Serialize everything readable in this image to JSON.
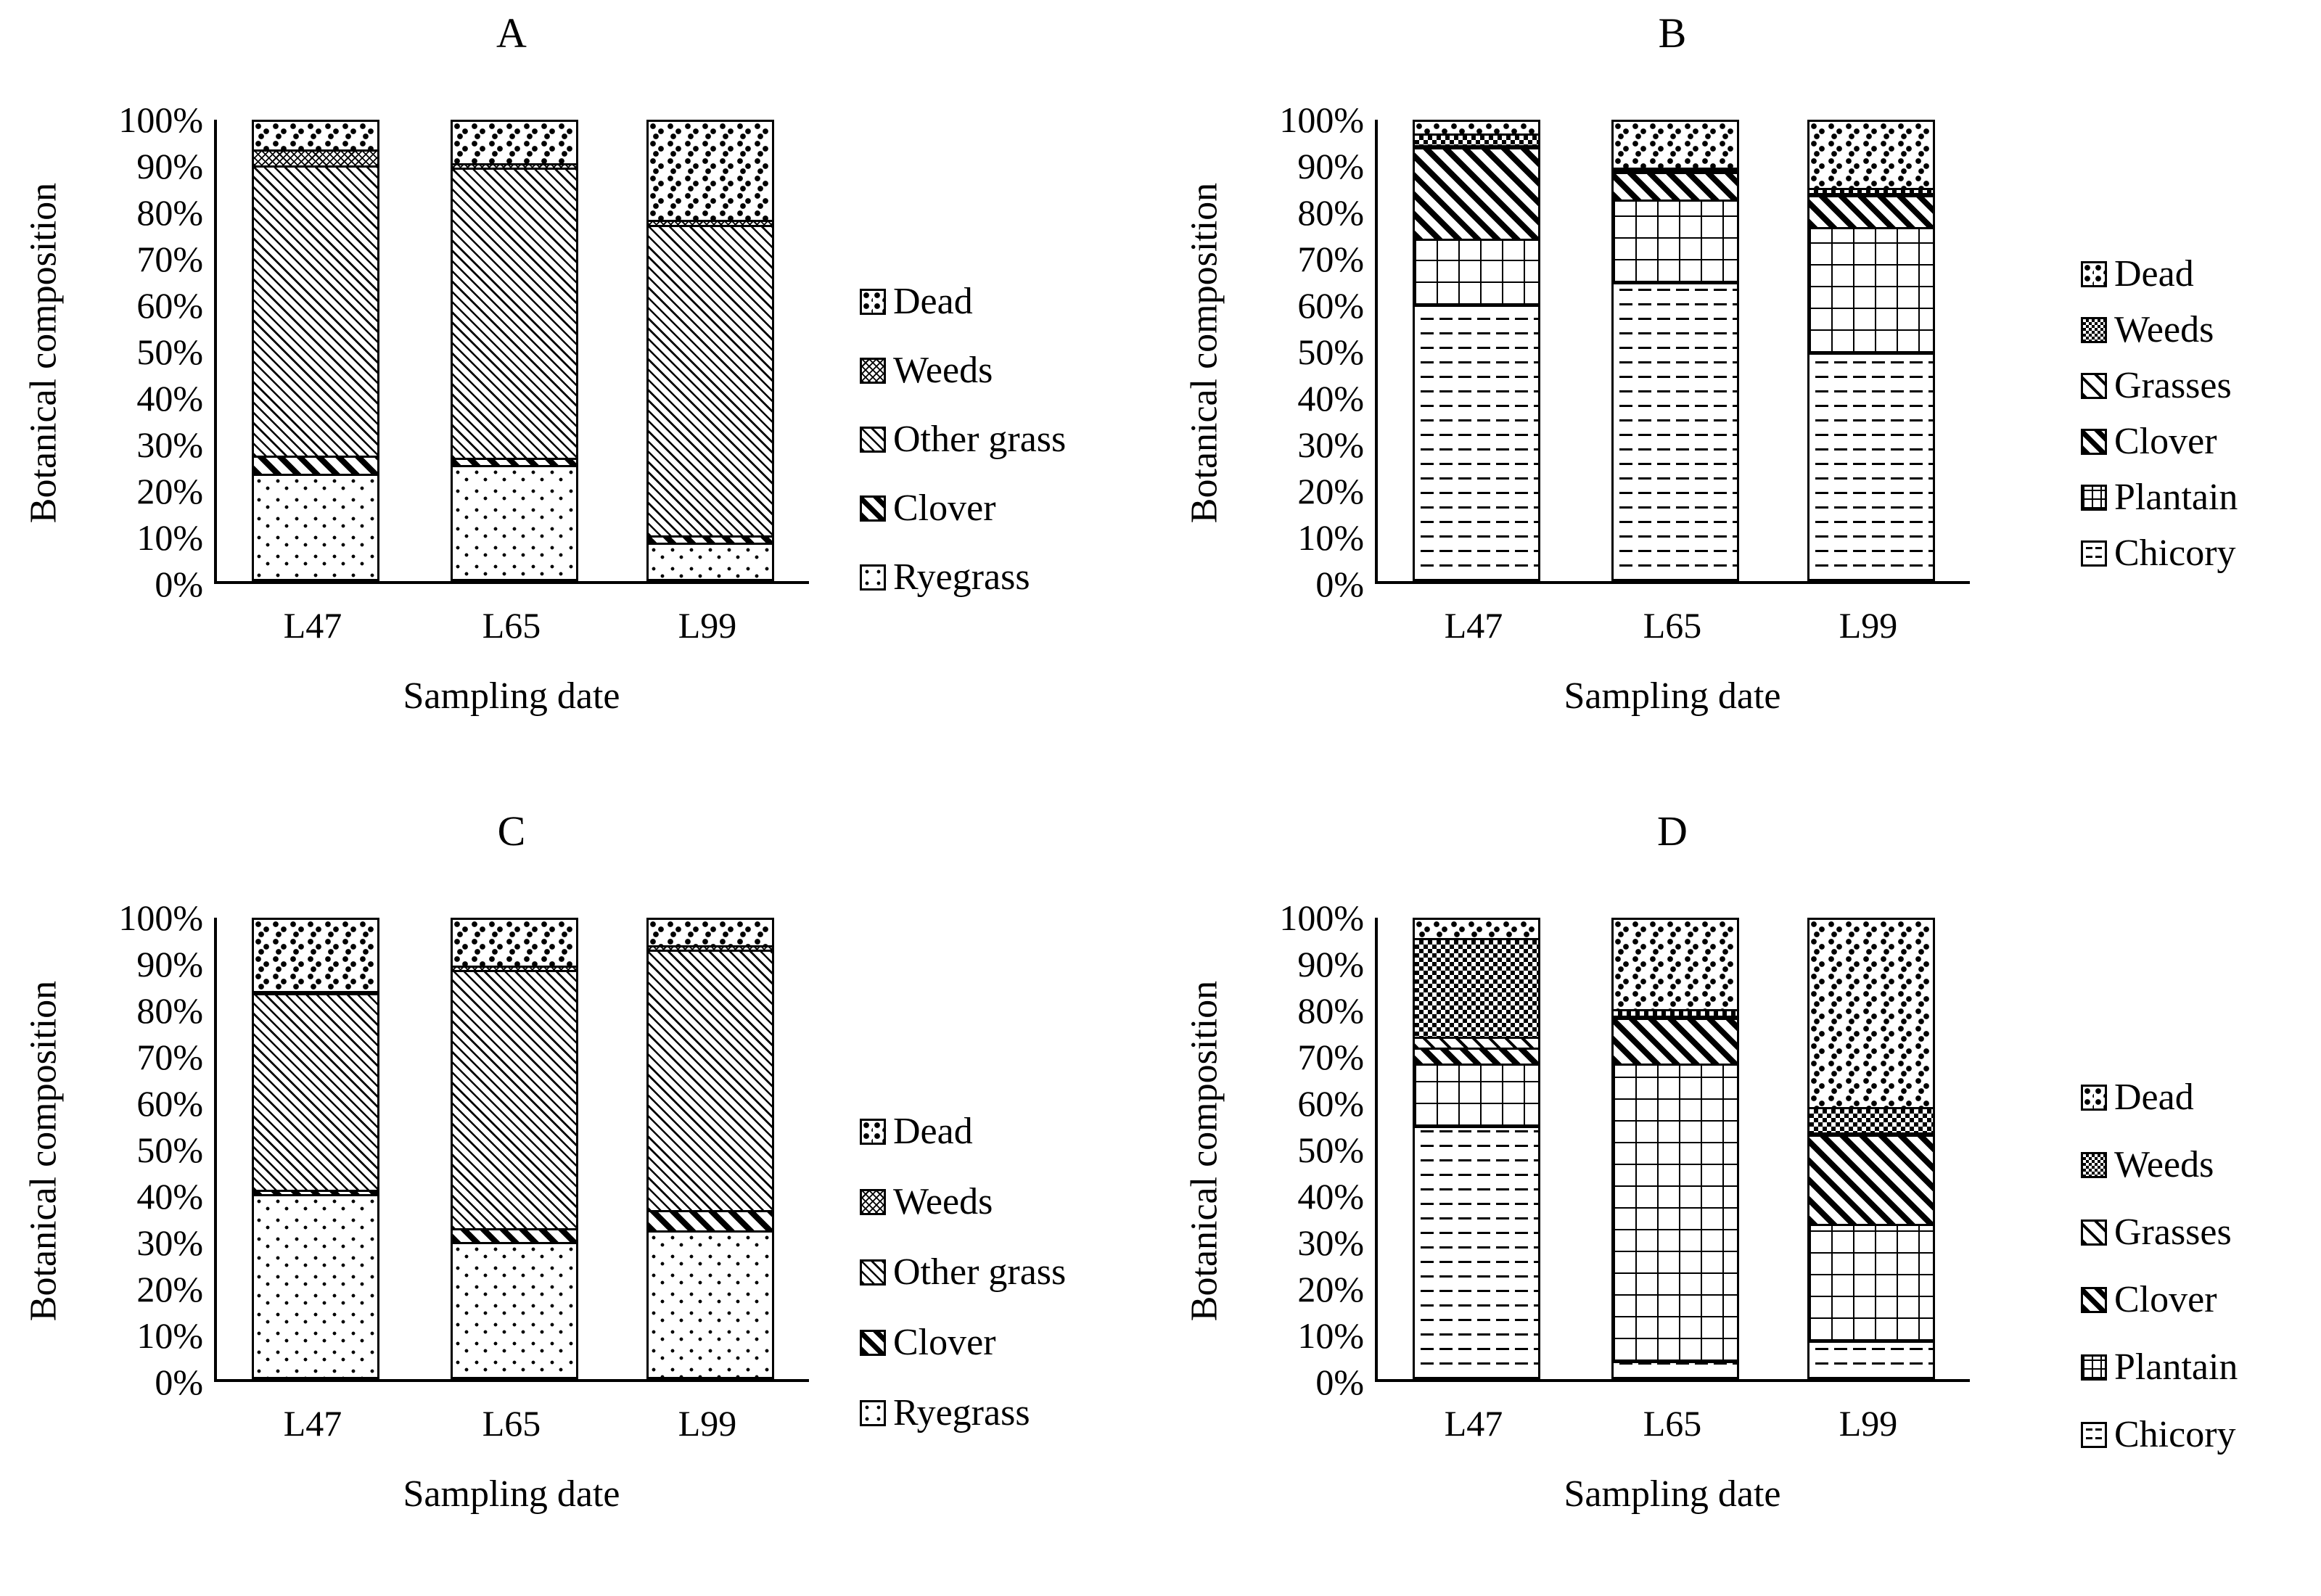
{
  "figure": {
    "description": "Four-panel 100% stacked bar figure of pasture botanical composition by sampling date",
    "x_axis_label": "Sampling date",
    "y_axis_label": "Botanical composition"
  },
  "chart_data": [
    {
      "id": "A",
      "type": "bar",
      "subtype": "stacked-100",
      "title": "A",
      "xlabel": "Sampling date",
      "ylabel": "Botanical composition",
      "ylim": [
        0,
        100
      ],
      "y_ticks": [
        "100%",
        "90%",
        "80%",
        "70%",
        "60%",
        "50%",
        "40%",
        "30%",
        "20%",
        "10%",
        "0%"
      ],
      "categories": [
        "L47",
        "L65",
        "L99"
      ],
      "legend_order_top_to_bottom": [
        "Dead",
        "Weeds",
        "Other grass",
        "Clover",
        "Ryegrass"
      ],
      "series": [
        {
          "name": "Ryegrass",
          "pattern": "ryegrass",
          "values": [
            23,
            25,
            8
          ]
        },
        {
          "name": "Clover",
          "pattern": "clover",
          "values": [
            4,
            1.5,
            1.5
          ]
        },
        {
          "name": "Other grass",
          "pattern": "othergrass",
          "values": [
            63.5,
            63.5,
            68
          ]
        },
        {
          "name": "Weeds",
          "pattern": "weeds-fine",
          "values": [
            3.5,
            1,
            1
          ]
        },
        {
          "name": "Dead",
          "pattern": "dead",
          "values": [
            6,
            9,
            21.5
          ]
        }
      ]
    },
    {
      "id": "B",
      "type": "bar",
      "subtype": "stacked-100",
      "title": "B",
      "xlabel": "Sampling date",
      "ylabel": "Botanical composition",
      "ylim": [
        0,
        100
      ],
      "y_ticks": [
        "100%",
        "90%",
        "80%",
        "70%",
        "60%",
        "50%",
        "40%",
        "30%",
        "20%",
        "10%",
        "0%"
      ],
      "categories": [
        "L47",
        "L65",
        "L99"
      ],
      "legend_order_top_to_bottom": [
        "Dead",
        "Weeds",
        "Grasses",
        "Clover",
        "Plantain",
        "Chicory"
      ],
      "series": [
        {
          "name": "Chicory",
          "pattern": "chicory",
          "values": [
            60,
            65,
            49.5
          ]
        },
        {
          "name": "Plantain",
          "pattern": "plantain",
          "values": [
            14.5,
            18,
            27.5
          ]
        },
        {
          "name": "Clover",
          "pattern": "clover",
          "values": [
            20,
            6,
            7
          ]
        },
        {
          "name": "Grasses",
          "pattern": "grasses",
          "values": [
            0.5,
            0.5,
            0.5
          ]
        },
        {
          "name": "Weeds",
          "pattern": "weeds-weave",
          "values": [
            2.5,
            0.5,
            1
          ]
        },
        {
          "name": "Dead",
          "pattern": "dead",
          "values": [
            2.5,
            10,
            14.5
          ]
        }
      ]
    },
    {
      "id": "C",
      "type": "bar",
      "subtype": "stacked-100",
      "title": "C",
      "xlabel": "Sampling date",
      "ylabel": "Botanical composition",
      "ylim": [
        0,
        100
      ],
      "y_ticks": [
        "100%",
        "90%",
        "80%",
        "70%",
        "60%",
        "50%",
        "40%",
        "30%",
        "20%",
        "10%",
        "0%"
      ],
      "categories": [
        "L47",
        "L65",
        "L99"
      ],
      "legend_order_top_to_bottom": [
        "Dead",
        "Weeds",
        "Other grass",
        "Clover",
        "Ryegrass"
      ],
      "series": [
        {
          "name": "Ryegrass",
          "pattern": "ryegrass",
          "values": [
            40,
            29.5,
            32
          ]
        },
        {
          "name": "Clover",
          "pattern": "clover",
          "values": [
            1,
            3,
            4.5
          ]
        },
        {
          "name": "Other grass",
          "pattern": "othergrass",
          "values": [
            43,
            56.5,
            57
          ]
        },
        {
          "name": "Weeds",
          "pattern": "weeds-fine",
          "values": [
            0.5,
            1,
            1
          ]
        },
        {
          "name": "Dead",
          "pattern": "dead",
          "values": [
            15.5,
            10,
            5.5
          ]
        }
      ]
    },
    {
      "id": "D",
      "type": "bar",
      "subtype": "stacked-100",
      "title": "D",
      "xlabel": "Sampling date",
      "ylabel": "Botanical composition",
      "ylim": [
        0,
        100
      ],
      "y_ticks": [
        "100%",
        "90%",
        "80%",
        "70%",
        "60%",
        "50%",
        "40%",
        "30%",
        "20%",
        "10%",
        "0%"
      ],
      "categories": [
        "L47",
        "L65",
        "L99"
      ],
      "legend_order_top_to_bottom": [
        "Dead",
        "Weeds",
        "Grasses",
        "Clover",
        "Plantain",
        "Chicory"
      ],
      "series": [
        {
          "name": "Chicory",
          "pattern": "chicory",
          "values": [
            55,
            3.5,
            8
          ]
        },
        {
          "name": "Plantain",
          "pattern": "plantain",
          "values": [
            13.5,
            65,
            25.5
          ]
        },
        {
          "name": "Clover",
          "pattern": "clover",
          "values": [
            3.5,
            10,
            19.5
          ]
        },
        {
          "name": "Grasses",
          "pattern": "grasses",
          "values": [
            2.5,
            0.5,
            0.5
          ]
        },
        {
          "name": "Weeds",
          "pattern": "weeds-weave",
          "values": [
            21.5,
            1.5,
            5.5
          ]
        },
        {
          "name": "Dead",
          "pattern": "dead",
          "values": [
            4,
            19.5,
            41
          ]
        }
      ]
    }
  ],
  "colors": {
    "foreground": "#000000",
    "background": "#ffffff"
  }
}
